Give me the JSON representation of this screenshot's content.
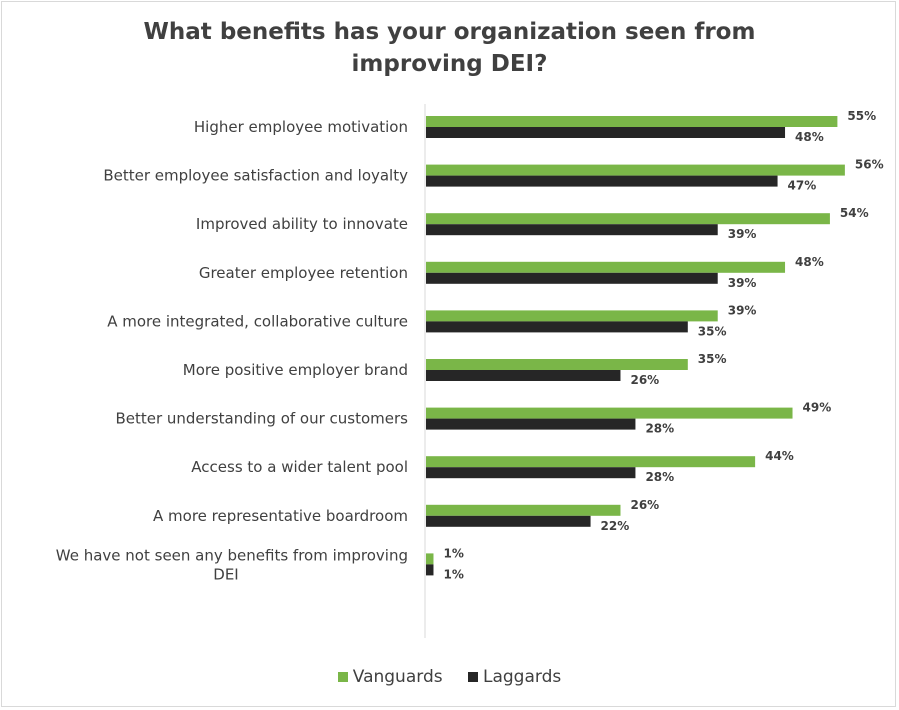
{
  "chart_data": {
    "type": "bar",
    "orientation": "horizontal",
    "title_lines": [
      "What benefits has your organization seen from",
      "improving DEI?"
    ],
    "categories": [
      [
        "Higher employee motivation"
      ],
      [
        "Better employee satisfaction and loyalty"
      ],
      [
        "Improved ability to innovate"
      ],
      [
        "Greater employee retention"
      ],
      [
        "A more integrated, collaborative culture"
      ],
      [
        "More positive employer brand"
      ],
      [
        "Better understanding of our customers"
      ],
      [
        "Access to a wider talent pool"
      ],
      [
        "A more representative boardroom"
      ],
      [
        "We have not seen any benefits from improving",
        "DEI"
      ]
    ],
    "series": [
      {
        "name": "Vanguards",
        "color": "#7ab648",
        "values": [
          55,
          56,
          54,
          48,
          39,
          35,
          49,
          44,
          26,
          1
        ],
        "labels": [
          "55%",
          "56%",
          "54%",
          "48%",
          "39%",
          "35%",
          "49%",
          "44%",
          "26%",
          "1%"
        ]
      },
      {
        "name": "Laggards",
        "color": "#262626",
        "values": [
          48,
          47,
          39,
          39,
          35,
          26,
          28,
          28,
          22,
          1
        ],
        "labels": [
          "48%",
          "47%",
          "39%",
          "39%",
          "35%",
          "26%",
          "28%",
          "28%",
          "22%",
          "1%"
        ]
      }
    ],
    "xlim": [
      0,
      60
    ],
    "grid": false,
    "legend_position": "bottom"
  }
}
